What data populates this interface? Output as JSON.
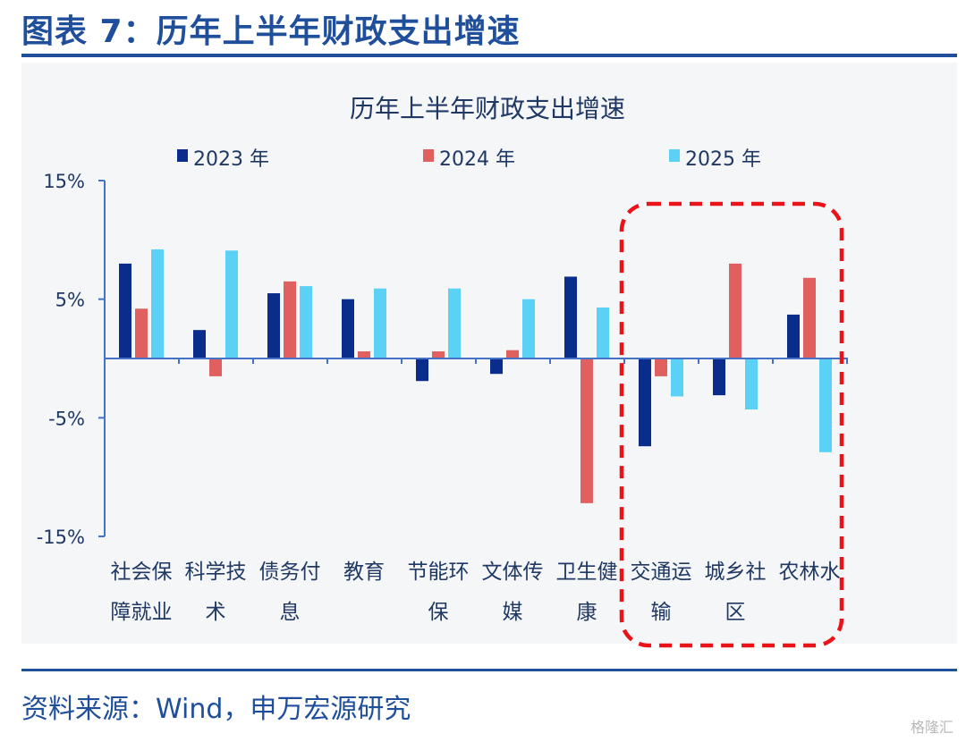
{
  "figure_title": "图表 7：历年上半年财政支出增速",
  "source": "资料来源：Wind，申万宏源研究",
  "watermark": "格隆汇",
  "colors": {
    "accent": "#1F4E9B",
    "s2023": "#0A2D8C",
    "s2024": "#E06060",
    "s2025": "#5BD2F5",
    "highlight": "#E8141A"
  },
  "chart_data": {
    "type": "bar",
    "title": "历年上半年财政支出增速",
    "categories": [
      [
        "社会保",
        "障就业"
      ],
      [
        "科学技",
        "术"
      ],
      [
        "债务付",
        "息"
      ],
      [
        "教育",
        ""
      ],
      [
        "节能环",
        "保"
      ],
      [
        "文体传",
        "媒"
      ],
      [
        "卫生健",
        "康"
      ],
      [
        "交通运",
        "输"
      ],
      [
        "城乡社",
        "区"
      ],
      [
        "农林水",
        ""
      ]
    ],
    "series": [
      {
        "name": "2023 年",
        "values": [
          8.0,
          2.4,
          5.5,
          5.0,
          -1.9,
          -1.3,
          6.9,
          -7.4,
          -3.1,
          3.7
        ]
      },
      {
        "name": "2024 年",
        "values": [
          4.2,
          -1.5,
          6.5,
          0.6,
          0.6,
          0.7,
          -12.2,
          -1.5,
          8.0,
          6.8
        ]
      },
      {
        "name": "2025 年",
        "values": [
          9.2,
          9.1,
          6.1,
          5.9,
          5.9,
          5.0,
          4.3,
          -3.2,
          -4.3,
          -7.9
        ]
      }
    ],
    "ylim": [
      -15,
      15
    ],
    "yticks": [
      "15%",
      "5%",
      "-5%",
      "-15%"
    ],
    "ytick_values": [
      15,
      5,
      -5,
      -15
    ],
    "legend_position": "top",
    "grid": false,
    "highlight_categories": [
      "交通运输",
      "城乡社区",
      "农林水"
    ]
  }
}
